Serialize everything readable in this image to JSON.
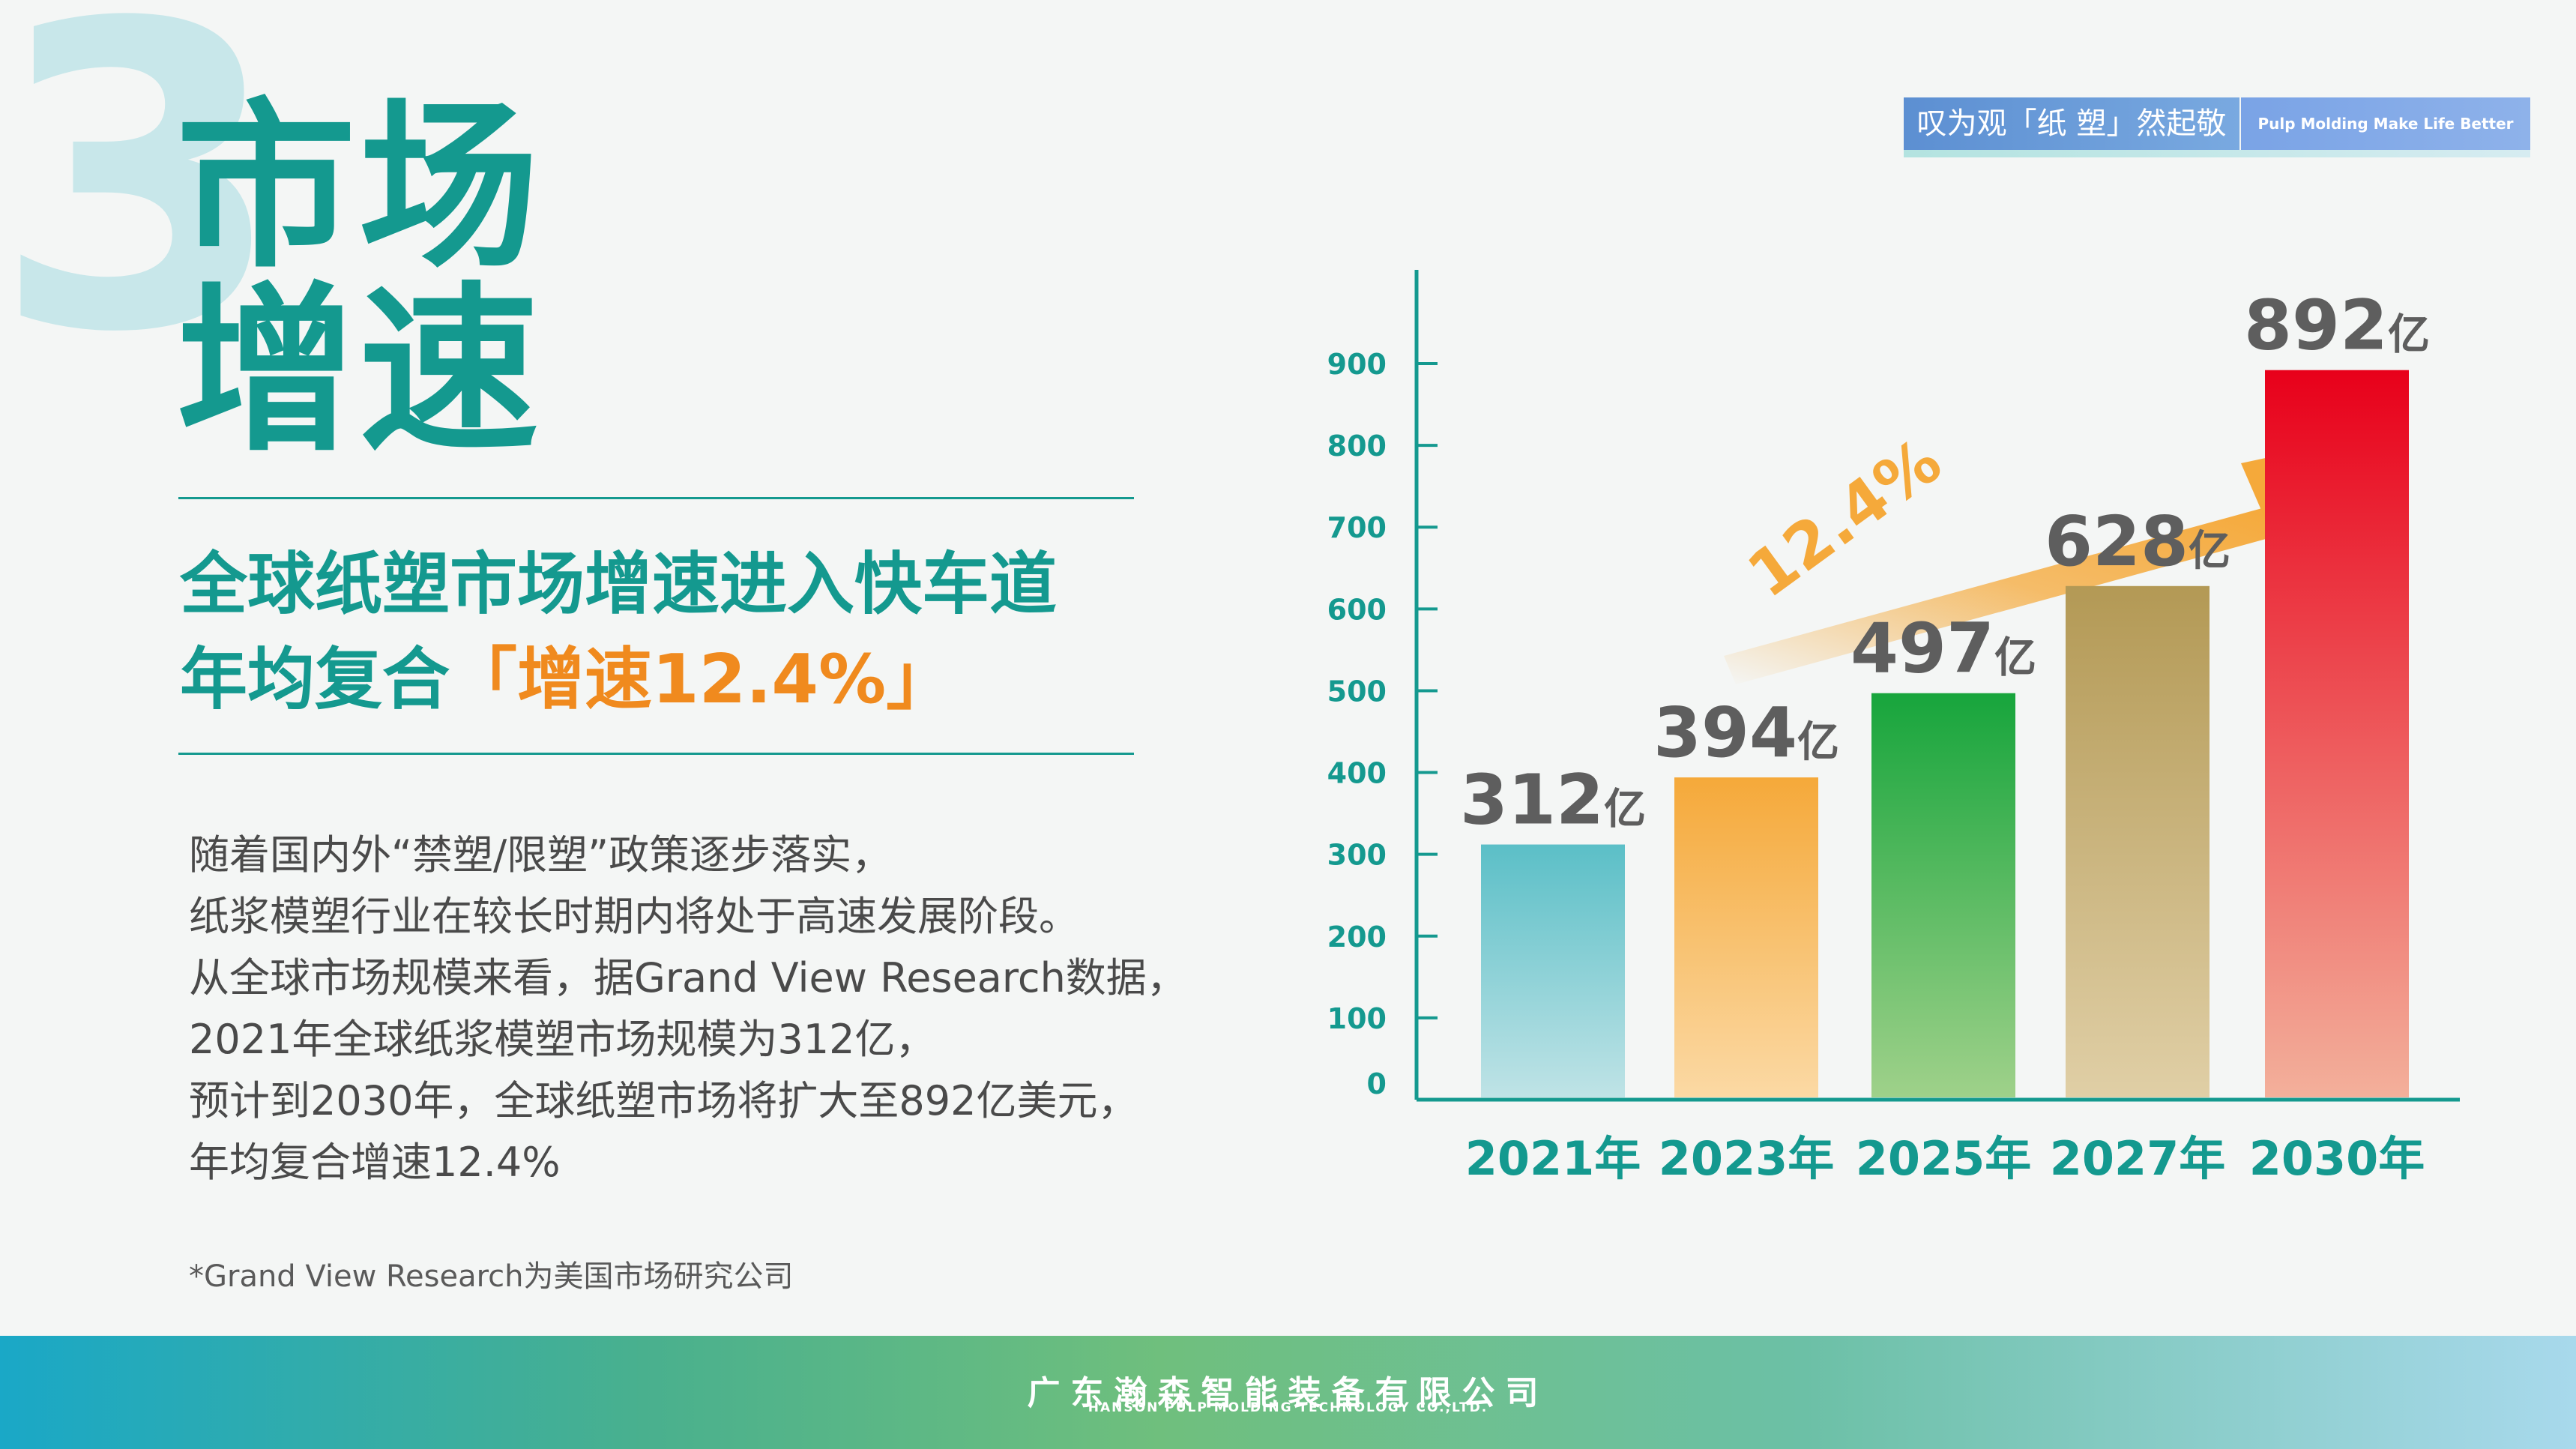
{
  "header": {
    "big_number": "3",
    "title_line1": "市场",
    "title_line2": "增速"
  },
  "subtitle": {
    "line1": "全球纸塑市场增速进入快车道",
    "line2_prefix": "年均复合",
    "line2_highlight": "「增速12.4%」"
  },
  "body_lines": [
    "随着国内外“禁塑/限塑”政策逐步落实，",
    "纸浆模塑行业在较长时期内将处于高速发展阶段。",
    "从全球市场规模来看，据Grand View Research数据，",
    "2021年全球纸浆模塑市场规模为312亿，",
    "预计到2030年，全球纸塑市场将扩大至892亿美元，",
    "年均复合增速12.4%"
  ],
  "footnote": "*Grand View Research为美国市场研究公司",
  "slogan": {
    "cn": "叹为观「纸 塑」然起敬",
    "en": "Pulp Molding Make Life Better"
  },
  "footer": {
    "company_cn": "广东瀚森智能装备有限公司",
    "company_en": "HANSON PULP MOLDING TECHNOLOGY CO.,LTD."
  },
  "colors": {
    "teal": "#14998f",
    "orange": "#f08a1e",
    "bar_2021": [
      "#5bbfc7",
      "#bfe3e6"
    ],
    "bar_2023": [
      "#f5a93a",
      "#fbd9a4"
    ],
    "bar_2025": [
      "#17a53c",
      "#9fd18a"
    ],
    "bar_2027": [
      "#b39955",
      "#e0cfa6"
    ],
    "bar_2030": [
      "#e8001a",
      "#f3b09b"
    ]
  },
  "chart_data": {
    "type": "bar",
    "categories": [
      "2021年",
      "2023年",
      "2025年",
      "2027年",
      "2030年"
    ],
    "values": [
      312,
      394,
      497,
      628,
      892
    ],
    "value_labels": [
      "312",
      "394",
      "497",
      "628",
      "892"
    ],
    "value_unit": "亿",
    "y_ticks": [
      "0",
      "100",
      "200",
      "300",
      "400",
      "500",
      "600",
      "700",
      "800",
      "900"
    ],
    "ylim": [
      0,
      900
    ],
    "annotation": "12.4%",
    "grid": false,
    "legend": "none"
  }
}
